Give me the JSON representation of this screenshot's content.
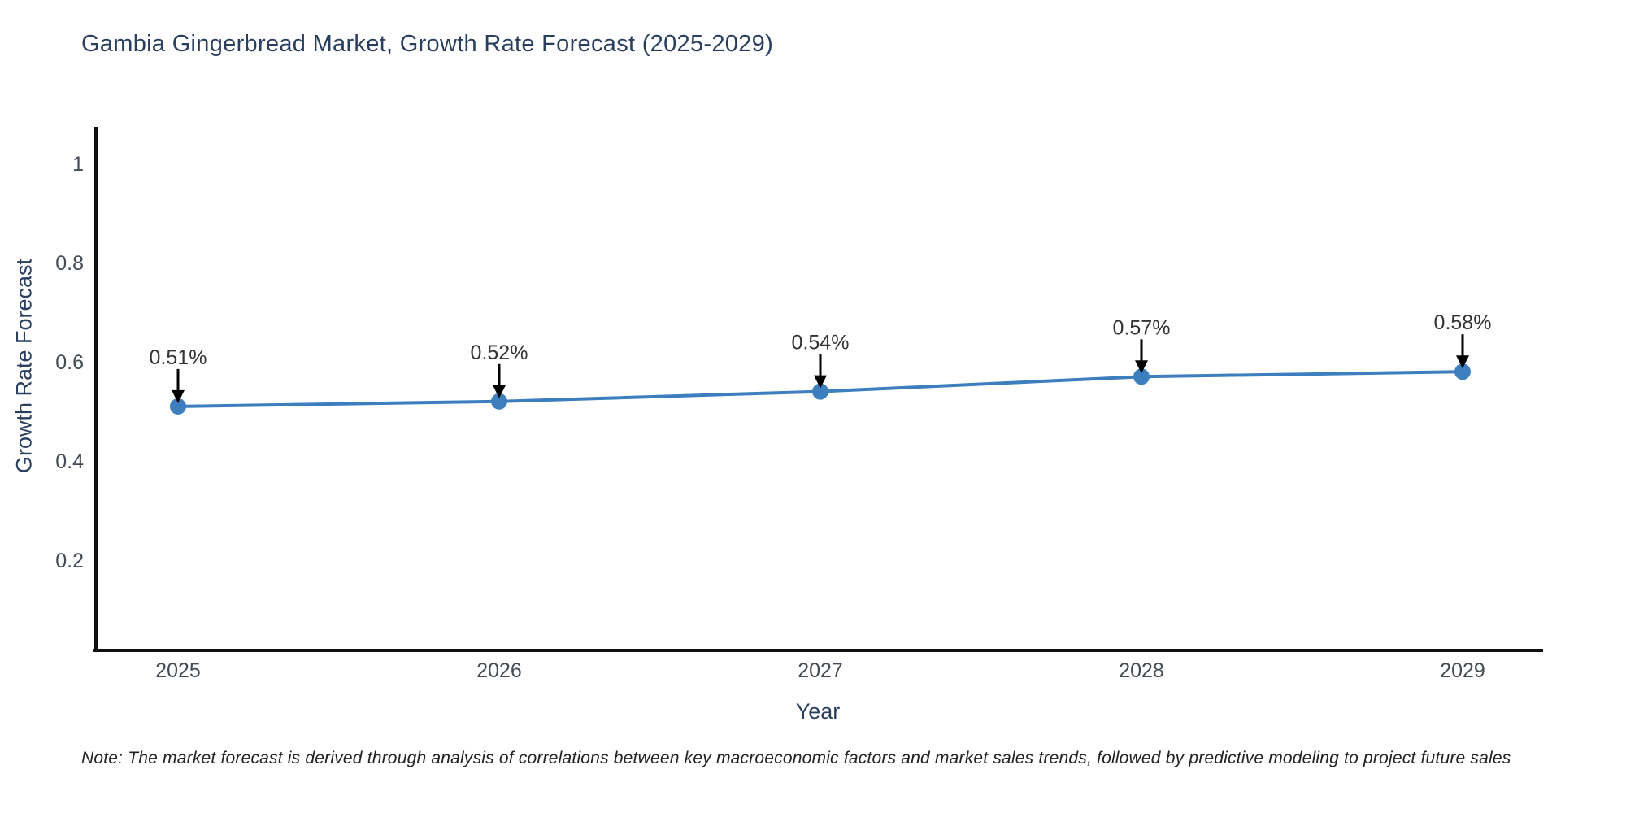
{
  "title": "Gambia Gingerbread Market, Growth Rate Forecast (2025-2029)",
  "chart_data": {
    "type": "line",
    "title": "Gambia Gingerbread Market, Growth Rate Forecast (2025-2029)",
    "xlabel": "Year",
    "ylabel": "Growth Rate Forecast",
    "x": [
      "2025",
      "2026",
      "2027",
      "2028",
      "2029"
    ],
    "series": [
      {
        "name": "Growth Rate Forecast",
        "values": [
          0.51,
          0.52,
          0.54,
          0.57,
          0.58
        ]
      }
    ],
    "point_labels": [
      "0.51%",
      "0.52%",
      "0.54%",
      "0.57%",
      "0.58%"
    ],
    "ytick_values": [
      1,
      0.8,
      0.6,
      0.4,
      0.2
    ],
    "ytick_labels": [
      "1",
      "0.8",
      "0.6",
      "0.4",
      "0.2"
    ],
    "ylim": [
      0.02,
      1.07
    ],
    "grid": false,
    "legend_position": "none",
    "annotations_have_arrows": true,
    "line_color": "#3d7ebf",
    "marker_color": "#3d7ebf",
    "arrow_color": "#000000"
  },
  "note": "Note: The market forecast is derived through analysis of correlations between key macroeconomic factors and market sales trends, followed by predictive modeling to project future sales",
  "colors": {
    "background": "#ffffff",
    "title_text": "#2a3f5f",
    "axis_title_text": "#2a3f5f",
    "tick_text": "#444b54",
    "axis_line": "#101010",
    "annotation_text": "#333333",
    "note_text": "#222222"
  }
}
